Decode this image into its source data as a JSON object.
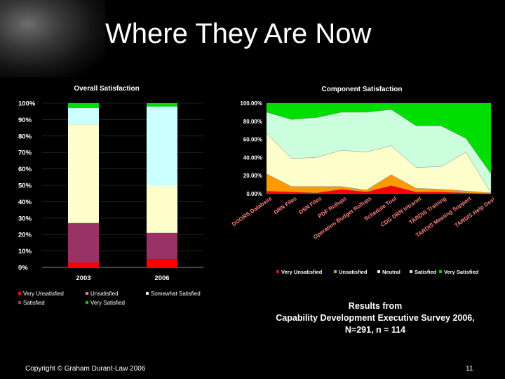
{
  "slide": {
    "title": "Where They Are Now",
    "note_line1": "Results from",
    "note_line2": "Capability Development Executive Survey 2006,",
    "note_line3": "N=291, n = 114",
    "copyright": "Copyright © Graham Durant-Law 2006",
    "page_number": "11"
  },
  "chart_data": [
    {
      "type": "bar",
      "stacked": true,
      "normalized": true,
      "title": "Overall Satisfaction",
      "categories": [
        "2003",
        "2006"
      ],
      "ylim": [
        0,
        100
      ],
      "yticks": [
        "0%",
        "10%",
        "20%",
        "30%",
        "40%",
        "50%",
        "60%",
        "70%",
        "80%",
        "90%",
        "100%"
      ],
      "series": [
        {
          "name": "Very Unsatisfied",
          "color": "#ff0000",
          "values": [
            3,
            5
          ]
        },
        {
          "name": "Unsatisfied",
          "color": "#ff8080",
          "values": [
            0,
            0
          ]
        },
        {
          "name": "Somewhat Satisfied",
          "color": "#ffffff",
          "values": [
            0,
            0
          ]
        },
        {
          "name": "Satisfied",
          "color": "#993366",
          "values": [
            24,
            16
          ]
        },
        {
          "name": "Very Satisfied",
          "color": "#00cc00",
          "values": [
            0,
            0
          ]
        },
        {
          "name": "",
          "color": "#ffffcc",
          "values": [
            60,
            29
          ]
        },
        {
          "name": "",
          "color": "#ccffff",
          "values": [
            10,
            48
          ]
        },
        {
          "name": "",
          "color": "#00dd00",
          "values": [
            3,
            2
          ]
        }
      ],
      "legend_position": "bottom"
    },
    {
      "type": "area",
      "stacked": true,
      "normalized": true,
      "title": "Component Satisfaction",
      "categories": [
        "DOORS Database",
        "DRN Files",
        "DSN Files",
        "PDF Rollups",
        "Operation Budget Rollups",
        "Schedule Tool",
        "CDG DRN Intranet",
        "TARDIS Training",
        "TARDIS Meeting Support",
        "TARDIS Help Desk"
      ],
      "ylim": [
        0,
        100
      ],
      "yticks": [
        "0.00%",
        "20.00%",
        "40.00%",
        "60.00%",
        "80.00%",
        "100.00%"
      ],
      "series": [
        {
          "name": "Very Unsatisfied",
          "color": "#ff0000",
          "values": [
            3,
            2,
            1,
            5,
            2,
            9,
            2,
            2,
            1,
            0
          ]
        },
        {
          "name": "Unsatisfied",
          "color": "#ff9900",
          "values": [
            19,
            6,
            7,
            3,
            2,
            12,
            4,
            3,
            2,
            1
          ]
        },
        {
          "name": "Neutral",
          "color": "#ffffcc",
          "values": [
            45,
            31,
            32,
            40,
            42,
            32,
            23,
            25,
            43,
            0
          ]
        },
        {
          "name": "Satisfied",
          "color": "#ccffdd",
          "values": [
            23,
            43,
            44,
            42,
            44,
            40,
            46,
            45,
            15,
            21
          ]
        },
        {
          "name": "Very Satisfied",
          "color": "#00dd00",
          "values": [
            10,
            18,
            16,
            10,
            10,
            7,
            25,
            25,
            39,
            78
          ]
        }
      ],
      "legend_position": "bottom"
    }
  ]
}
